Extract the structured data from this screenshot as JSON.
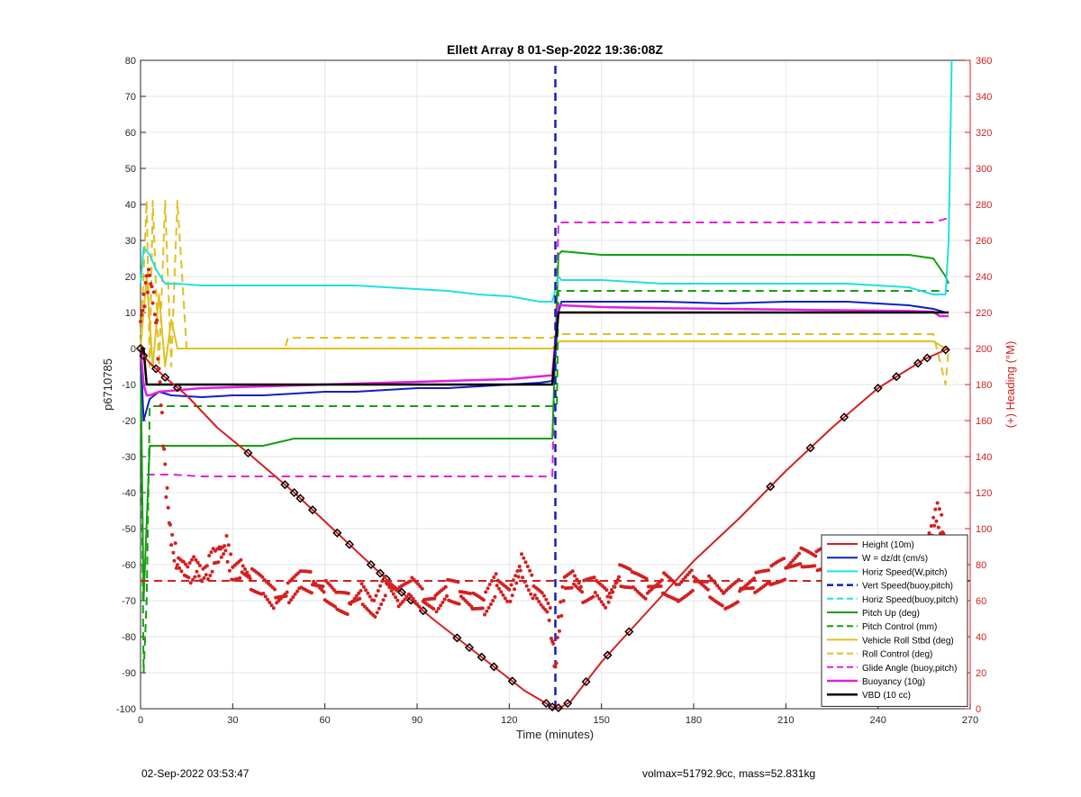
{
  "chart_data": {
    "type": "line",
    "title": "Ellett Array 8 01-Sep-2022 19:36:08Z",
    "xlabel": "Time (minutes)",
    "ylabel": "p6710785",
    "y2label": "(+) Heading (°M)",
    "xlim": [
      0,
      270
    ],
    "ylim": [
      -100,
      80
    ],
    "y2lim": [
      0,
      360
    ],
    "xticks": [
      0,
      30,
      60,
      90,
      120,
      150,
      180,
      210,
      240,
      270
    ],
    "yticks": [
      -100,
      -90,
      -80,
      -70,
      -60,
      -50,
      -40,
      -30,
      -20,
      -10,
      0,
      10,
      20,
      30,
      40,
      50,
      60,
      70,
      80
    ],
    "y2ticks": [
      0,
      20,
      40,
      60,
      80,
      100,
      120,
      140,
      160,
      180,
      200,
      220,
      240,
      260,
      280,
      300,
      320,
      340,
      360
    ],
    "grid": true,
    "legend_position": "bottom-right",
    "apogee_x": 135,
    "series": [
      {
        "name": "Height (10m)",
        "color": "#d42020",
        "style": "solid",
        "width": 2,
        "x": [
          0,
          1,
          3,
          8,
          15,
          25,
          35,
          50,
          65,
          80,
          95,
          110,
          125,
          133,
          135,
          137,
          140,
          150,
          165,
          180,
          195,
          210,
          225,
          240,
          255,
          263
        ],
        "y": [
          0,
          -2,
          -4,
          -8,
          -13,
          -22,
          -29,
          -40,
          -52,
          -64,
          -75,
          -85,
          -95,
          -99,
          -100,
          -99.5,
          -98,
          -87,
          -73,
          -59,
          -47,
          -34,
          -22,
          -11,
          -3,
          0
        ]
      },
      {
        "name": "W = dz/dt (cm/s)",
        "color": "#1020c0",
        "style": "solid",
        "width": 2,
        "x": [
          0,
          1,
          3,
          6,
          10,
          20,
          30,
          40,
          50,
          60,
          70,
          80,
          90,
          100,
          110,
          120,
          130,
          134,
          136,
          137,
          150,
          170,
          190,
          210,
          230,
          250,
          258,
          262,
          263
        ],
        "y": [
          0,
          -20,
          -14,
          -12,
          -13,
          -13.5,
          -13,
          -13,
          -12.5,
          -12,
          -12,
          -11.5,
          -11,
          -11,
          -10.5,
          -10,
          -9.5,
          -9,
          10,
          13,
          13,
          13,
          12.5,
          13,
          13,
          12,
          11,
          10,
          10
        ]
      },
      {
        "name": "Horiz Speed(W,pitch)",
        "color": "#20e0e0",
        "style": "solid",
        "width": 2,
        "x": [
          0,
          1,
          3,
          5,
          8,
          12,
          20,
          30,
          40,
          50,
          60,
          70,
          80,
          90,
          100,
          110,
          120,
          130,
          134,
          136,
          137,
          150,
          170,
          190,
          210,
          230,
          250,
          258,
          262,
          263,
          264
        ],
        "y": [
          18,
          28,
          26,
          22,
          18,
          18,
          17.5,
          17.5,
          17.5,
          17.5,
          17.5,
          17.5,
          17,
          16.5,
          16,
          15,
          14.5,
          13,
          13,
          20,
          19,
          19,
          18,
          18,
          18,
          18,
          17,
          15,
          15,
          30,
          80
        ]
      },
      {
        "name": "Vert Speed(buoy,pitch)",
        "color": "#1020c0",
        "style": "dashed",
        "width": 2.5,
        "x": [
          135,
          135
        ],
        "y": [
          -100,
          80
        ]
      },
      {
        "name": "Horiz Speed(buoy,pitch)",
        "color": "#20e0e0",
        "style": "dashed",
        "width": 2,
        "x": [],
        "y": []
      },
      {
        "name": "Pitch Up (deg)",
        "color": "#10a010",
        "style": "solid",
        "width": 2,
        "x": [
          0,
          1,
          3,
          10,
          20,
          30,
          40,
          50,
          60,
          70,
          80,
          90,
          100,
          110,
          120,
          130,
          134,
          136,
          137,
          150,
          170,
          190,
          210,
          230,
          250,
          258,
          262,
          263
        ],
        "y": [
          0,
          -70,
          -27,
          -27,
          -27,
          -27,
          -27,
          -25,
          -25,
          -25,
          -25,
          -25,
          -25,
          -25,
          -25,
          -25,
          -25,
          26,
          27,
          26,
          26,
          26,
          26,
          26,
          26,
          25,
          20,
          18
        ]
      },
      {
        "name": "Pitch Control (mm)",
        "color": "#10a010",
        "style": "dashed",
        "width": 2,
        "x": [
          0,
          1,
          2,
          3,
          10,
          50,
          134,
          135.5,
          136,
          263
        ],
        "y": [
          0,
          -90,
          -70,
          -16,
          -16,
          -16,
          -16,
          -16,
          16,
          16
        ]
      },
      {
        "name": "Vehicle Roll Stbd (deg)",
        "color": "#e0c020",
        "style": "solid",
        "width": 2,
        "x": [
          0,
          2,
          4,
          6,
          8,
          10,
          12,
          15,
          20,
          30,
          40,
          47,
          48,
          60,
          70,
          80,
          90,
          100,
          110,
          120,
          130,
          134,
          136,
          150,
          170,
          190,
          210,
          230,
          250,
          258,
          262,
          263
        ],
        "y": [
          0,
          20,
          -5,
          15,
          -5,
          8,
          0,
          0,
          0,
          0,
          0,
          0,
          0,
          0,
          0,
          0,
          0,
          0,
          0,
          0,
          0,
          0,
          2,
          2,
          2,
          2,
          2,
          2,
          2,
          2,
          0,
          0
        ]
      },
      {
        "name": "Roll Control (deg)",
        "color": "#e0c020",
        "style": "dashed",
        "width": 2,
        "x": [
          0,
          2,
          3,
          4,
          6,
          8,
          10,
          12,
          15,
          30,
          47,
          48,
          60,
          70,
          80,
          90,
          100,
          110,
          120,
          130,
          134,
          136,
          150,
          170,
          190,
          210,
          230,
          250,
          258,
          262,
          263
        ],
        "y": [
          0,
          41,
          -5,
          41,
          -5,
          41,
          -5,
          41,
          0,
          0,
          0,
          3,
          3,
          3,
          3,
          3,
          3,
          3,
          3,
          3,
          3,
          4,
          4,
          4,
          4,
          4,
          4,
          4,
          4,
          -10,
          0
        ]
      },
      {
        "name": "Glide Angle (buoy,pitch)",
        "color": "#e020e0",
        "style": "dashed",
        "width": 2,
        "x": [
          2,
          3,
          10,
          20,
          40,
          60,
          80,
          100,
          120,
          130,
          134,
          136,
          137,
          150,
          170,
          190,
          210,
          230,
          250,
          258,
          262,
          263
        ],
        "y": [
          -35,
          -35,
          -35,
          -35.5,
          -35.5,
          -35.5,
          -35.5,
          -35.5,
          -35.5,
          -35.5,
          -35.5,
          35,
          35,
          35,
          35,
          35,
          35,
          35,
          35,
          35,
          36,
          36
        ]
      },
      {
        "name": "Buoyancy (10g)",
        "color": "#e020e0",
        "style": "solid",
        "width": 2.5,
        "x": [
          0,
          1,
          2,
          3,
          6,
          20,
          40,
          60,
          80,
          100,
          120,
          133,
          134,
          136,
          137,
          150,
          170,
          190,
          210,
          230,
          250,
          258,
          260,
          262,
          263
        ],
        "y": [
          0,
          -10,
          -13,
          -13,
          -12,
          -11,
          -10.5,
          -10,
          -9.5,
          -9,
          -8.5,
          -7.5,
          -7.5,
          12,
          12,
          11.5,
          11.2,
          11,
          10.8,
          10.6,
          10.4,
          10.2,
          9,
          9,
          9
        ]
      },
      {
        "name": "VBD (10 cc)",
        "color": "#000000",
        "style": "solid",
        "width": 2.5,
        "x": [
          0,
          1,
          2,
          3,
          10,
          40,
          80,
          120,
          133,
          134,
          136,
          137,
          150,
          190,
          230,
          260,
          262,
          263
        ],
        "y": [
          0,
          0,
          -10,
          -10,
          -10,
          -10,
          -10,
          -10,
          -10,
          -10,
          10,
          10,
          10,
          10,
          10,
          10,
          10,
          10
        ]
      }
    ],
    "heading_series": {
      "name": "(+) Heading",
      "color": "#d42020",
      "axis": "right",
      "style": "dots",
      "x": [
        0,
        1,
        2,
        3,
        4,
        5,
        6,
        7,
        8,
        9,
        10,
        11,
        12,
        14,
        16,
        18,
        20,
        22,
        24,
        26,
        28,
        30,
        33,
        36,
        40,
        44,
        48,
        52,
        56,
        60,
        64,
        68,
        72,
        76,
        80,
        84,
        88,
        92,
        96,
        100,
        104,
        108,
        112,
        116,
        120,
        124,
        128,
        131,
        133,
        134,
        135,
        136,
        138,
        141,
        144,
        148,
        152,
        156,
        160,
        165,
        170,
        175,
        180,
        185,
        190,
        195,
        200,
        205,
        210,
        215,
        220,
        225,
        230,
        235,
        240,
        245,
        250,
        254,
        257,
        259,
        261,
        262,
        263
      ],
      "y": [
        215,
        225,
        235,
        240,
        230,
        220,
        190,
        160,
        130,
        110,
        95,
        88,
        82,
        78,
        75,
        80,
        74,
        78,
        84,
        86,
        90,
        75,
        78,
        72,
        68,
        60,
        64,
        72,
        70,
        66,
        60,
        58,
        64,
        55,
        70,
        62,
        68,
        60,
        58,
        66,
        64,
        60,
        58,
        70,
        62,
        80,
        66,
        60,
        55,
        40,
        20,
        45,
        70,
        72,
        65,
        68,
        60,
        74,
        72,
        66,
        70,
        64,
        72,
        68,
        60,
        66,
        70,
        74,
        78,
        84,
        82,
        86,
        80,
        72,
        66,
        70,
        82,
        88,
        95,
        110,
        100,
        85,
        78
      ]
    },
    "height_markers_x": [
      0,
      1,
      5,
      8,
      12,
      35,
      47,
      50,
      52,
      56,
      64,
      68,
      75,
      78,
      80,
      85,
      88,
      92,
      103,
      107,
      111,
      115,
      121,
      132,
      134,
      136,
      139,
      145,
      152,
      159,
      205,
      218,
      229,
      240,
      246,
      253,
      256,
      262
    ]
  },
  "footer": {
    "timestamp": "02-Sep-2022 03:53:47",
    "stats": "volmax=51792.9cc, mass=52.831kg"
  }
}
